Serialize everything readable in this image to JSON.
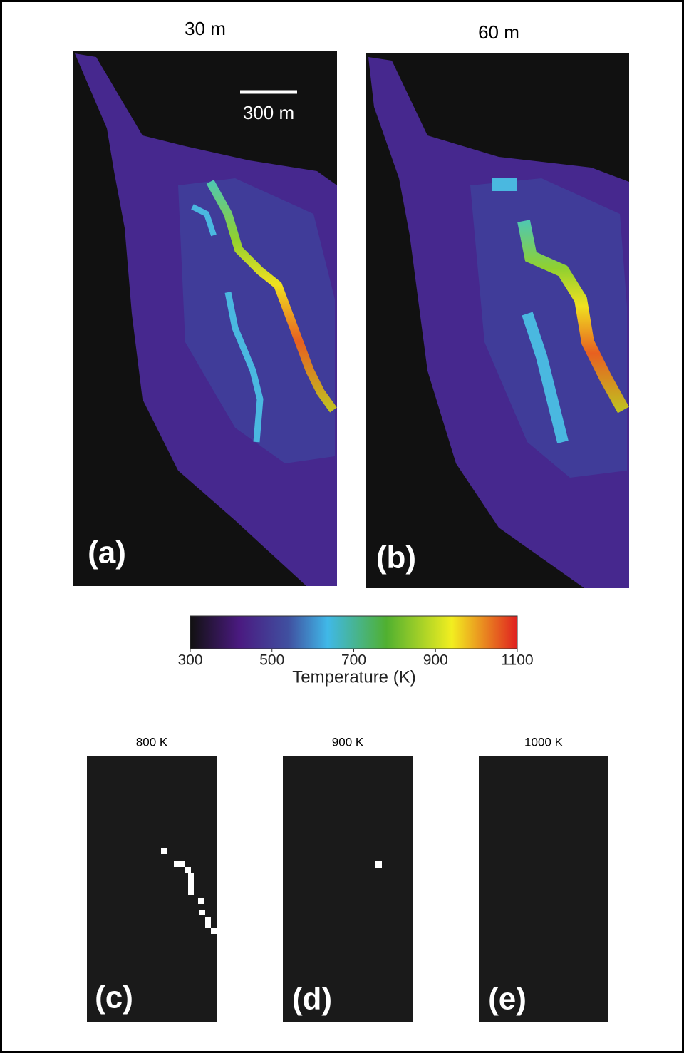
{
  "panels": [
    {
      "title": "30 m",
      "label": "(a)"
    },
    {
      "title": "60 m",
      "label": "(b)"
    },
    {
      "title": "800 K",
      "label": "(c)"
    },
    {
      "title": "900 K",
      "label": "(d)"
    },
    {
      "title": "1000 K",
      "label": "(e)"
    }
  ],
  "scale_bar": {
    "label": "300 m"
  },
  "colorbar": {
    "label": "Temperature (K)",
    "lim": [
      300,
      1100
    ],
    "ticks": [
      300,
      500,
      700,
      900,
      1100
    ]
  }
}
